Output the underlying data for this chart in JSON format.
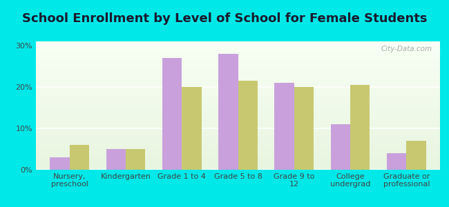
{
  "title": "School Enrollment by Level of School for Female Students",
  "categories": [
    "Nursery,\npreschool",
    "Kindergarten",
    "Grade 1 to 4",
    "Grade 5 to 8",
    "Grade 9 to\n12",
    "College\nundergrad",
    "Graduate or\nprofessional"
  ],
  "sunnyside": [
    3,
    5,
    27,
    28,
    21,
    11,
    4
  ],
  "washington": [
    6,
    5,
    20,
    21.5,
    20,
    20.5,
    7
  ],
  "sunnyside_color": "#c9a0dc",
  "washington_color": "#c8c870",
  "background_color": "#00e8e8",
  "plot_bg_top": "#e8f5e0",
  "plot_bg_bottom": "#f8fff4",
  "yticks": [
    0,
    10,
    20,
    30
  ],
  "ylim": [
    0,
    31
  ],
  "bar_width": 0.35,
  "title_fontsize": 13,
  "tick_fontsize": 8,
  "legend_fontsize": 9,
  "watermark_text": "City-Data.com"
}
